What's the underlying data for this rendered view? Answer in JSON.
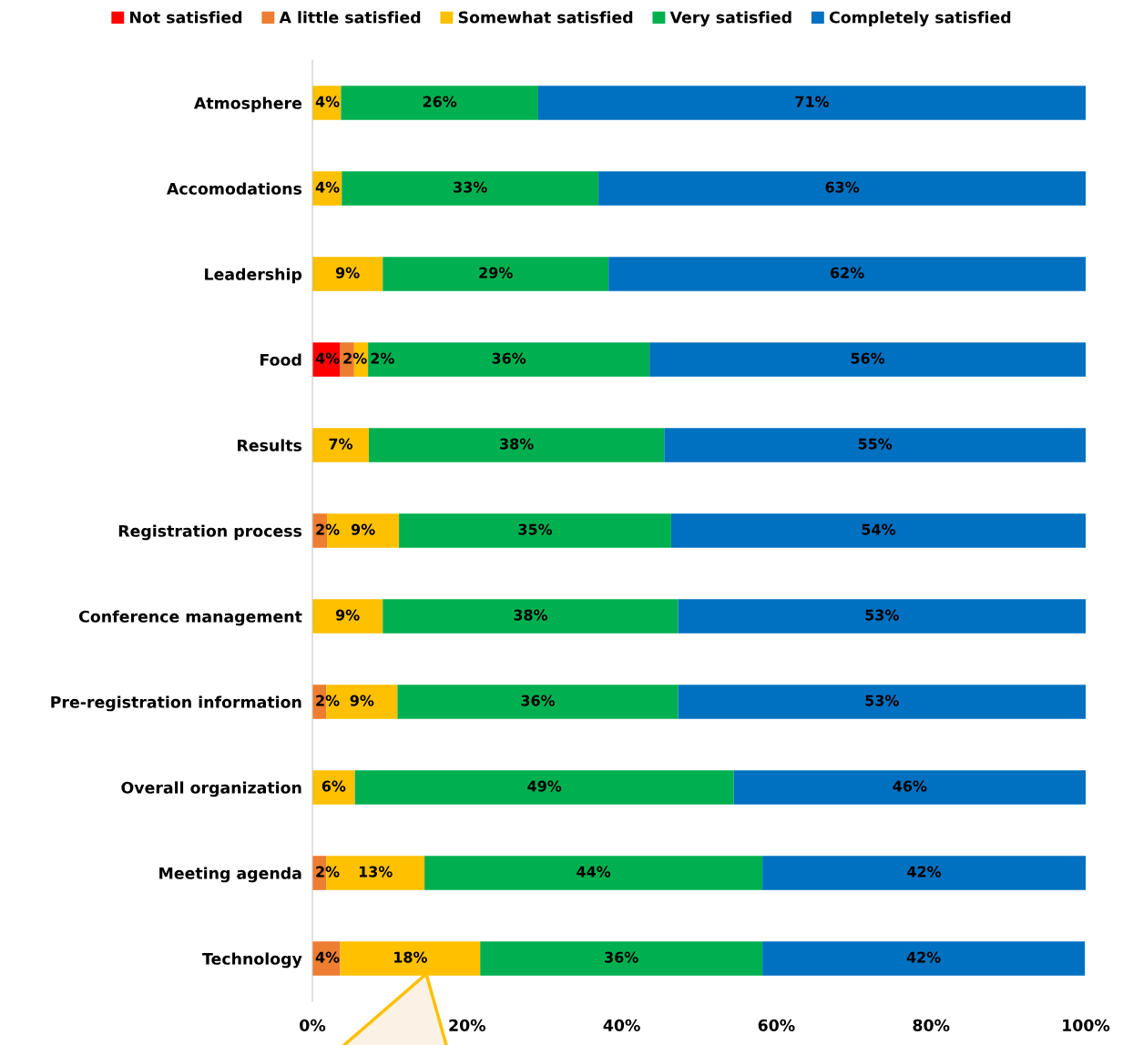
{
  "chart_data": {
    "type": "bar",
    "orientation": "horizontal",
    "stacked": true,
    "categories": [
      "Atmosphere",
      "Accomodations",
      "Leadership",
      "Food",
      "Results",
      "Registration process",
      "Conference management",
      "Pre-registration information",
      "Overall organization",
      "Meeting agenda",
      "Technology"
    ],
    "series": [
      {
        "name": "Not satisfied",
        "color": "#ff0000",
        "values": [
          null,
          null,
          null,
          3.6,
          null,
          null,
          null,
          null,
          null,
          null,
          null
        ],
        "value_labels": [
          null,
          null,
          null,
          "4%",
          null,
          null,
          null,
          null,
          null,
          null,
          null
        ]
      },
      {
        "name": "A little satisfied",
        "color": "#ed7d31",
        "values": [
          null,
          null,
          null,
          1.8,
          null,
          1.9,
          null,
          1.8,
          null,
          1.8,
          3.6
        ],
        "value_labels": [
          null,
          null,
          null,
          "2%",
          null,
          "2%",
          null,
          "2%",
          null,
          "2%",
          "4%"
        ]
      },
      {
        "name": "Somewhat satisfied",
        "color": "#ffc000",
        "values": [
          3.7,
          3.8,
          9.1,
          1.8,
          7.3,
          9.3,
          9.1,
          9.2,
          5.5,
          12.7,
          18.1
        ],
        "value_labels": [
          "4%",
          "4%",
          "9%",
          "2%",
          "7%",
          "9%",
          "9%",
          "9%",
          "6%",
          "13%",
          "18%"
        ]
      },
      {
        "name": "Very satisfied",
        "color": "#00b050",
        "values": [
          25.5,
          33.2,
          29.2,
          36.4,
          38.2,
          35.2,
          38.2,
          36.3,
          49.0,
          43.7,
          36.5
        ],
        "value_labels": [
          "26%",
          "33%",
          "29%",
          "36%",
          "38%",
          "35%",
          "38%",
          "36%",
          "49%",
          "44%",
          "36%"
        ]
      },
      {
        "name": "Completely satisfied",
        "color": "#0070c0",
        "values": [
          70.8,
          63.0,
          61.7,
          56.4,
          54.5,
          53.6,
          52.7,
          52.7,
          45.5,
          41.8,
          41.7
        ],
        "value_labels": [
          "71%",
          "63%",
          "62%",
          "56%",
          "55%",
          "54%",
          "53%",
          "53%",
          "46%",
          "42%",
          "42%"
        ]
      }
    ],
    "xlim": [
      0,
      100
    ],
    "xticks": [
      {
        "value": 0,
        "label": "0%"
      },
      {
        "value": 20,
        "label": "20%"
      },
      {
        "value": 40,
        "label": "40%"
      },
      {
        "value": 60,
        "label": "60%"
      },
      {
        "value": 80,
        "label": "80%"
      },
      {
        "value": 100,
        "label": "100%"
      }
    ],
    "grid": false,
    "legend": "top"
  }
}
